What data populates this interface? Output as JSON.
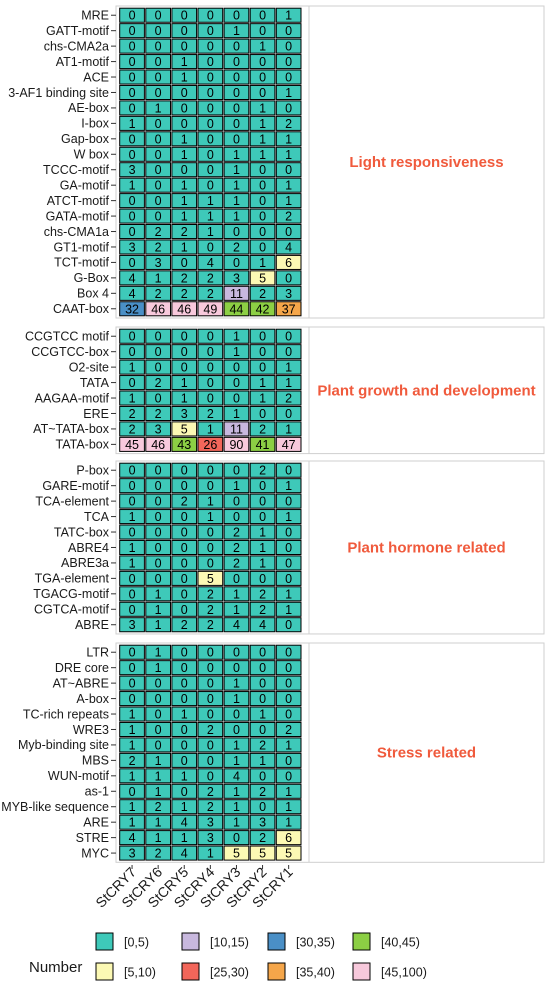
{
  "chart_data": {
    "type": "heatmap",
    "columns": [
      "StCRY7",
      "StCRY6",
      "StCRY5",
      "StCRY4",
      "StCRY3",
      "StCRY2",
      "StCRY1"
    ],
    "facets": [
      {
        "name": "Light responsiveness",
        "rows": [
          "MRE",
          "GATT-motif",
          "chs-CMA2a",
          "AT1-motif",
          "ACE",
          "3-AF1 binding site",
          "AE-box",
          "I-box",
          "Gap-box",
          "W box",
          "TCCC-motif",
          "GA-motif",
          "ATCT-motif",
          "GATA-motif",
          "chs-CMA1a",
          "GT1-motif",
          "TCT-motif",
          "G-Box",
          "Box 4",
          "CAAT-box"
        ],
        "values": [
          [
            0,
            0,
            0,
            0,
            0,
            0,
            1
          ],
          [
            0,
            0,
            0,
            0,
            1,
            0,
            0
          ],
          [
            0,
            0,
            0,
            0,
            0,
            1,
            0
          ],
          [
            0,
            0,
            1,
            0,
            0,
            0,
            0
          ],
          [
            0,
            0,
            1,
            0,
            0,
            0,
            0
          ],
          [
            0,
            0,
            0,
            0,
            0,
            0,
            1
          ],
          [
            0,
            1,
            0,
            0,
            0,
            1,
            0
          ],
          [
            1,
            0,
            0,
            0,
            0,
            1,
            2
          ],
          [
            0,
            0,
            1,
            0,
            0,
            1,
            1
          ],
          [
            0,
            0,
            1,
            0,
            1,
            1,
            1
          ],
          [
            3,
            0,
            0,
            0,
            1,
            0,
            0
          ],
          [
            1,
            0,
            1,
            0,
            1,
            0,
            1
          ],
          [
            0,
            0,
            1,
            1,
            1,
            0,
            1
          ],
          [
            0,
            0,
            1,
            1,
            1,
            0,
            2
          ],
          [
            0,
            2,
            2,
            1,
            0,
            0,
            0
          ],
          [
            3,
            2,
            1,
            0,
            2,
            0,
            4
          ],
          [
            0,
            3,
            0,
            4,
            0,
            1,
            6
          ],
          [
            4,
            1,
            2,
            2,
            3,
            5,
            0
          ],
          [
            4,
            2,
            2,
            2,
            11,
            2,
            3
          ],
          [
            32,
            46,
            46,
            49,
            44,
            42,
            37
          ]
        ]
      },
      {
        "name": "Plant growth and development",
        "rows": [
          "CCGTCC motif",
          "CCGTCC-box",
          "O2-site",
          "TATA",
          "AAGAA-motif",
          "ERE",
          "AT~TATA-box",
          "TATA-box"
        ],
        "values": [
          [
            0,
            0,
            0,
            0,
            1,
            0,
            0
          ],
          [
            0,
            0,
            0,
            0,
            1,
            0,
            0
          ],
          [
            1,
            0,
            0,
            0,
            0,
            0,
            1
          ],
          [
            0,
            2,
            1,
            0,
            0,
            1,
            1
          ],
          [
            1,
            0,
            1,
            0,
            0,
            1,
            2
          ],
          [
            2,
            2,
            3,
            2,
            1,
            0,
            0
          ],
          [
            2,
            3,
            5,
            1,
            11,
            2,
            1
          ],
          [
            45,
            46,
            43,
            26,
            90,
            41,
            47
          ]
        ]
      },
      {
        "name": "Plant hormone related",
        "rows": [
          "P-box",
          "GARE-motif",
          "TCA-element",
          "TCA",
          "TATC-box",
          "ABRE4",
          "ABRE3a",
          "TGA-element",
          "TGACG-motif",
          "CGTCA-motif",
          "ABRE"
        ],
        "values": [
          [
            0,
            0,
            0,
            0,
            0,
            2,
            0
          ],
          [
            0,
            0,
            0,
            0,
            1,
            0,
            1
          ],
          [
            0,
            0,
            2,
            1,
            0,
            0,
            0
          ],
          [
            1,
            0,
            0,
            1,
            0,
            0,
            1
          ],
          [
            0,
            0,
            0,
            0,
            2,
            1,
            0
          ],
          [
            1,
            0,
            0,
            0,
            2,
            1,
            0
          ],
          [
            1,
            0,
            0,
            0,
            2,
            1,
            0
          ],
          [
            0,
            0,
            0,
            5,
            0,
            0,
            0
          ],
          [
            0,
            1,
            0,
            2,
            1,
            2,
            1
          ],
          [
            0,
            1,
            0,
            2,
            1,
            2,
            1
          ],
          [
            3,
            1,
            2,
            2,
            4,
            4,
            0
          ]
        ]
      },
      {
        "name": "Stress related",
        "rows": [
          "LTR",
          "DRE core",
          "AT~ABRE",
          "A-box",
          "TC-rich repeats",
          "WRE3",
          "Myb-binding site",
          "MBS",
          "WUN-motif",
          "as-1",
          "MYB-like sequence",
          "ARE",
          "STRE",
          "MYC"
        ],
        "values": [
          [
            0,
            1,
            0,
            0,
            0,
            0,
            0
          ],
          [
            0,
            1,
            0,
            0,
            0,
            0,
            0
          ],
          [
            0,
            0,
            0,
            0,
            1,
            0,
            0
          ],
          [
            0,
            0,
            0,
            0,
            1,
            0,
            0
          ],
          [
            1,
            0,
            1,
            0,
            0,
            1,
            0
          ],
          [
            1,
            0,
            0,
            2,
            0,
            0,
            2
          ],
          [
            1,
            0,
            0,
            0,
            1,
            2,
            1
          ],
          [
            2,
            1,
            0,
            0,
            1,
            1,
            0
          ],
          [
            1,
            1,
            1,
            0,
            4,
            0,
            0
          ],
          [
            0,
            1,
            0,
            2,
            1,
            2,
            1
          ],
          [
            1,
            2,
            1,
            2,
            1,
            0,
            1
          ],
          [
            1,
            1,
            4,
            3,
            1,
            3,
            1
          ],
          [
            4,
            1,
            1,
            3,
            0,
            2,
            6
          ],
          [
            3,
            2,
            4,
            1,
            5,
            5,
            5
          ]
        ]
      }
    ],
    "legend": {
      "title": "Number",
      "placement": "bottom",
      "items": [
        {
          "label": "[0,5)",
          "color": "#3ec9b9"
        },
        {
          "label": "[5,10)",
          "color": "#fcf9b4"
        },
        {
          "label": "[10,15)",
          "color": "#c8b8de"
        },
        {
          "label": "[25,30)",
          "color": "#f2665a"
        },
        {
          "label": "[30,35)",
          "color": "#4a8fc6"
        },
        {
          "label": "[35,40)",
          "color": "#f5a64a"
        },
        {
          "label": "[40,45)",
          "color": "#8ccf44"
        },
        {
          "label": "[45,100)",
          "color": "#f8c9dc"
        }
      ]
    }
  }
}
